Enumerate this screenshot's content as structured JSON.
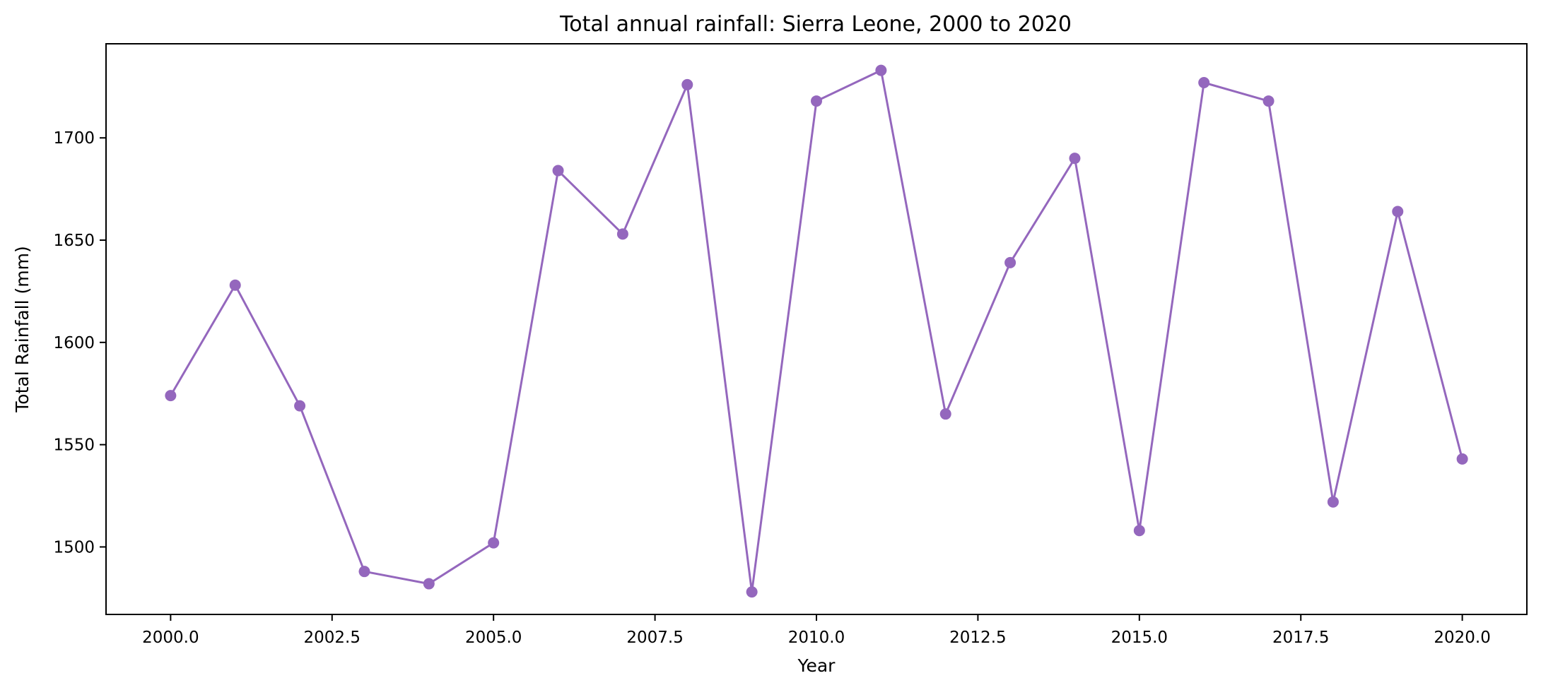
{
  "chart_data": {
    "type": "line",
    "title": "Total annual rainfall: Sierra Leone, 2000 to 2020",
    "xlabel": "Year",
    "ylabel": "Total Rainfall (mm)",
    "xlim": [
      1999.0,
      2021.0
    ],
    "ylim": [
      1467,
      1746
    ],
    "xticks": [
      2000.0,
      2002.5,
      2005.0,
      2007.5,
      2010.0,
      2012.5,
      2015.0,
      2017.5,
      2020.0
    ],
    "xtick_labels": [
      "2000.0",
      "2002.5",
      "2005.0",
      "2007.5",
      "2010.0",
      "2012.5",
      "2015.0",
      "2017.5",
      "2020.0"
    ],
    "yticks": [
      1500,
      1550,
      1600,
      1650,
      1700
    ],
    "ytick_labels": [
      "1500",
      "1550",
      "1600",
      "1650",
      "1700"
    ],
    "grid": false,
    "color": "#9467bd",
    "marker": "circle",
    "series": [
      {
        "x": [
          2000,
          2001,
          2002,
          2003,
          2004,
          2005,
          2006,
          2007,
          2008,
          2009,
          2010,
          2011,
          2012,
          2013,
          2014,
          2015,
          2016,
          2017,
          2018,
          2019,
          2020
        ],
        "values": [
          1574,
          1628,
          1569,
          1488,
          1482,
          1502,
          1684,
          1653,
          1726,
          1478,
          1718,
          1733,
          1565,
          1639,
          1690,
          1508,
          1727,
          1718,
          1522,
          1664,
          1543
        ]
      }
    ]
  }
}
